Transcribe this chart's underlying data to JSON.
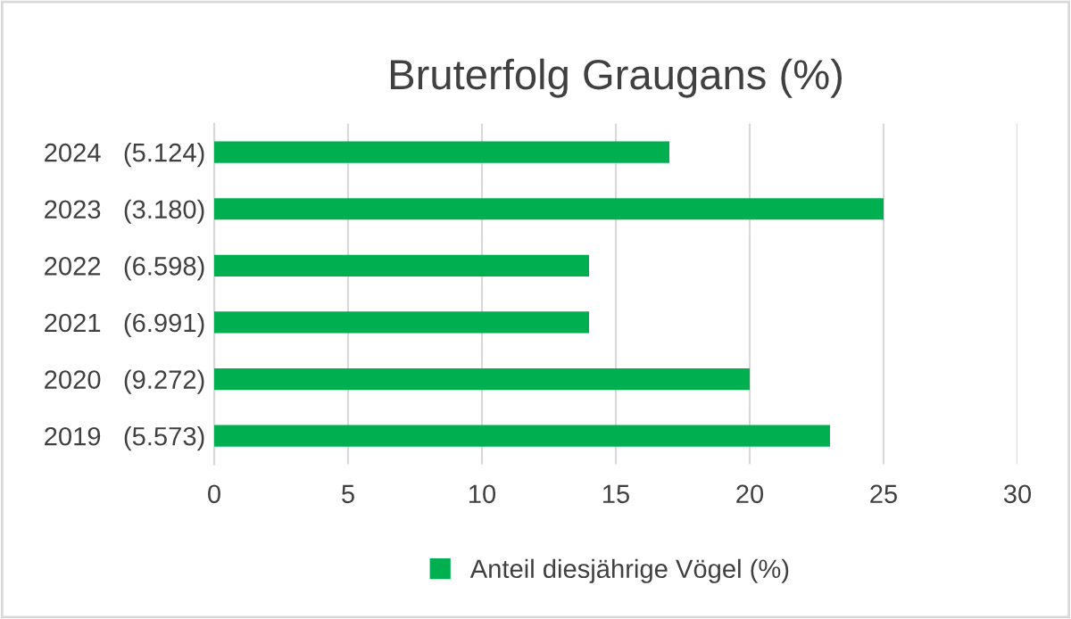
{
  "chart_data": {
    "type": "bar",
    "orientation": "horizontal",
    "title": "Bruterfolg Graugans (%)",
    "categories": [
      "2024   (5.124)",
      "2023   (3.180)",
      "2022   (6.598)",
      "2021   (6.991)",
      "2020   (9.272)",
      "2019   (5.573)"
    ],
    "series": [
      {
        "name": "Anteil diesjährige Vögel (%)",
        "color": "#00b050",
        "values": [
          17,
          25,
          14,
          14,
          20,
          23
        ]
      }
    ],
    "xlim": [
      0,
      30
    ],
    "xticks": [
      0,
      5,
      10,
      15,
      20,
      25,
      30
    ],
    "grid": "x",
    "legend": "bottom"
  }
}
